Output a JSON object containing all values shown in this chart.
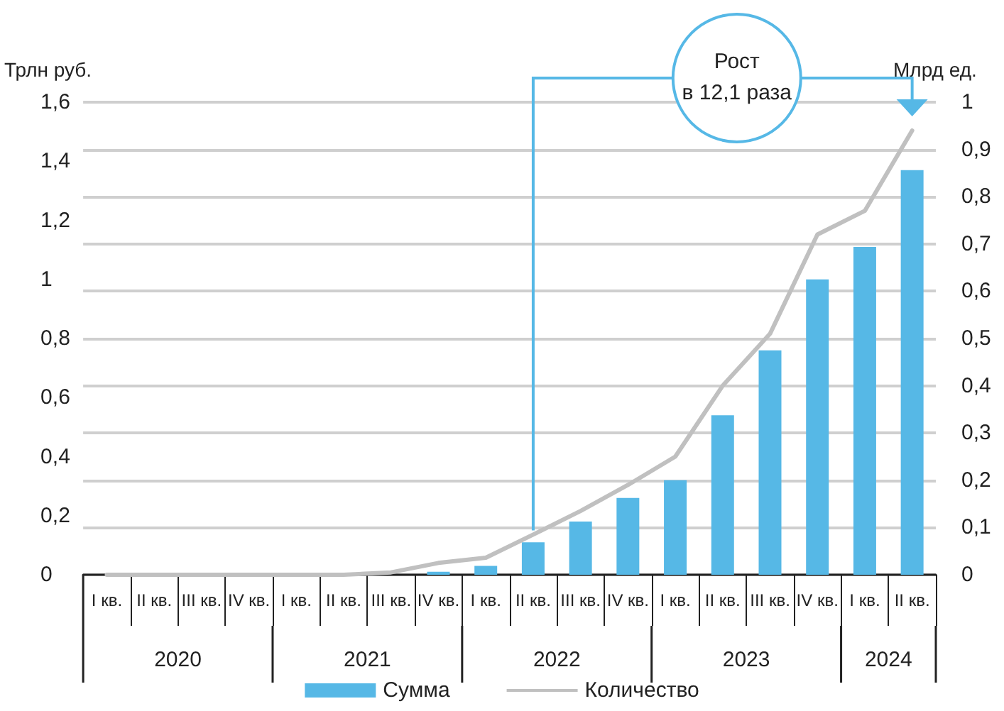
{
  "chart_data": {
    "type": "bar",
    "categories": [
      "I кв.",
      "II кв.",
      "III кв.",
      "IV кв.",
      "I кв.",
      "II кв.",
      "III кв.",
      "IV кв.",
      "I кв.",
      "II кв.",
      "III кв.",
      "IV кв.",
      "I кв.",
      "II кв.",
      "III кв.",
      "IV кв.",
      "I кв.",
      "II кв."
    ],
    "series": [
      {
        "name": "Сумма",
        "color": "#56b8e6",
        "values": [
          0,
          0,
          0,
          0,
          0,
          0,
          0,
          0.01,
          0.03,
          0.11,
          0.18,
          0.26,
          0.32,
          0.54,
          0.76,
          1.0,
          1.11,
          1.37
        ]
      },
      {
        "name": "Количество",
        "type": "line",
        "axis": "y2",
        "color": "#c0c0c0",
        "values": [
          0,
          0,
          0,
          0,
          0,
          0,
          0.005,
          0.025,
          0.036,
          0.085,
          0.135,
          0.19,
          0.25,
          0.4,
          0.51,
          0.72,
          0.77,
          0.94
        ]
      }
    ],
    "ylabel": "Трлн руб.",
    "y2label": "Млрд ед.",
    "ylim": [
      0,
      1.6
    ],
    "yticks": [
      0,
      {
        "value": 0.2,
        "label": "0,2"
      },
      {
        "value": 0.4,
        "label": "0,4"
      },
      {
        "value": 0.6,
        "label": "0,6"
      },
      {
        "value": 0.8,
        "label": "0,8"
      },
      1,
      {
        "value": 1.2,
        "label": "1,2"
      },
      {
        "value": 1.4,
        "label": "1,4"
      },
      {
        "value": 1.6,
        "label": "1,6"
      }
    ],
    "y2lim": [
      0,
      1
    ],
    "y2ticks": [
      0,
      {
        "value": 0.1,
        "label": "0,1"
      },
      {
        "value": 0.2,
        "label": "0,2"
      },
      {
        "value": 0.3,
        "label": "0,3"
      },
      {
        "value": 0.4,
        "label": "0,4"
      },
      {
        "value": 0.5,
        "label": "0,5"
      },
      {
        "value": 0.6,
        "label": "0,6"
      },
      {
        "value": 0.7,
        "label": "0,7"
      },
      {
        "value": 0.8,
        "label": "0,8"
      },
      {
        "value": 0.9,
        "label": "0,9"
      },
      1
    ],
    "grid": true,
    "legend": "bottom",
    "marker": "none",
    "line_style": "solid",
    "annotations": [
      "Рост\nв 12,1 раза",
      "2020",
      "2021",
      "2022",
      "2023",
      "2024"
    ]
  }
}
